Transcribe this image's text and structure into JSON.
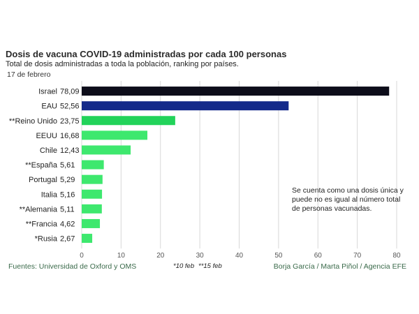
{
  "chart_data": {
    "type": "bar",
    "orientation": "horizontal",
    "title": "Dosis de vacuna COVID-19 administradas por cada 100 personas",
    "subtitle": "Total de dosis administradas a toda la población, ranking por países.",
    "date": "17 de febrero",
    "categories": [
      "Israel",
      "EAU",
      "**Reino Unido",
      "EEUU",
      "Chile",
      "**España",
      "Portugal",
      "Italia",
      "**Alemania",
      "**Francia",
      "*Rusia"
    ],
    "values": [
      78.09,
      52.56,
      23.75,
      16.68,
      12.43,
      5.61,
      5.29,
      5.16,
      5.11,
      4.62,
      2.67
    ],
    "value_labels": [
      "78,09",
      "52,56",
      "23,75",
      "16,68",
      "12,43",
      "5,61",
      "5,29",
      "5,16",
      "5,11",
      "4,62",
      "2,67"
    ],
    "bar_colors": [
      "#0d0d1a",
      "#142a8a",
      "#22d35a",
      "#3ee86e",
      "#3ee86e",
      "#3ee86e",
      "#3ee86e",
      "#3ee86e",
      "#3ee86e",
      "#3ee86e",
      "#3ee86e"
    ],
    "xlim": [
      0,
      80
    ],
    "xticks": [
      0,
      10,
      20,
      30,
      40,
      50,
      60,
      70,
      80
    ],
    "grid": "vertical",
    "note": "Se cuenta como una dosis única y puede no es igual al número total de personas vacunadas.",
    "source": "Fuentes: Universidad de Oxford y OMS",
    "footnotes": [
      "*10 feb",
      "**15 feb"
    ],
    "credit": "Borja García / Marta Piñol / Agencia EFE"
  }
}
